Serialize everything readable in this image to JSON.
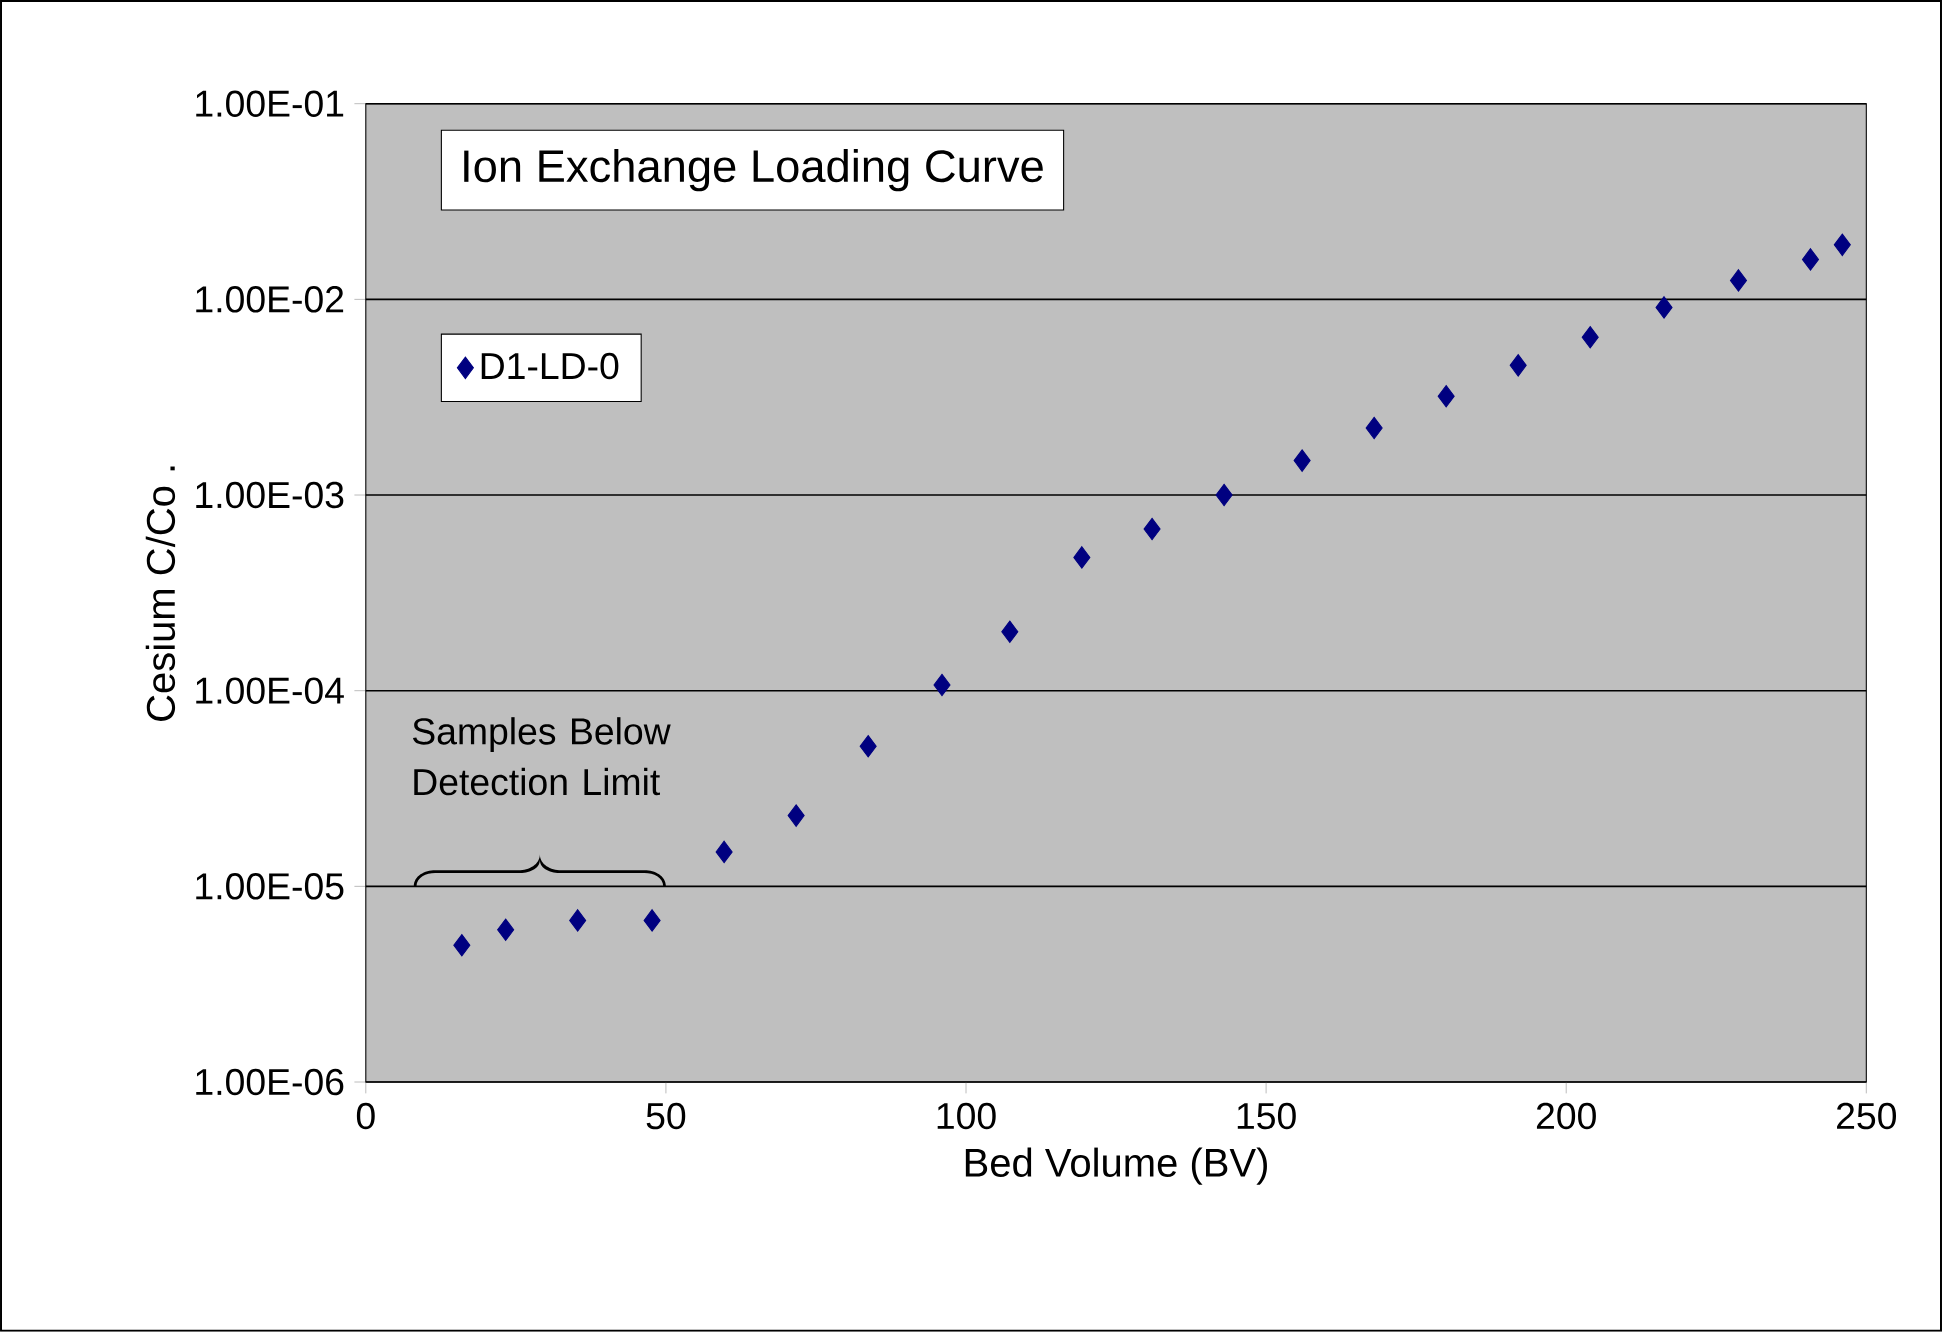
{
  "chart_data": {
    "type": "scatter",
    "title": "Ion Exchange Loading Curve",
    "xlabel": "Bed Volume (BV)",
    "ylabel": "Cesium C/Co     .",
    "x": [
      16,
      23.3,
      35.3,
      47.7,
      59.7,
      71.7,
      83.7,
      96,
      107.3,
      119.3,
      131,
      143,
      156,
      168,
      180,
      192,
      204,
      216.3,
      228.7,
      240.7,
      246
    ],
    "series": [
      {
        "name": "D1-LD-0",
        "color": "#000080",
        "values": [
          5e-06,
          6e-06,
          6.7e-06,
          6.7e-06,
          1.5e-05,
          2.3e-05,
          5.2e-05,
          0.000107,
          0.0002,
          0.00048,
          0.00067,
          0.001,
          0.0015,
          0.0022,
          0.0032,
          0.0046,
          0.0064,
          0.0091,
          0.0125,
          0.016,
          0.019
        ]
      }
    ],
    "xlim": [
      0,
      250
    ],
    "xticks": [
      0,
      50,
      100,
      150,
      200,
      250
    ],
    "ylim": [
      1e-06,
      0.1
    ],
    "yticks": [
      {
        "value": 1e-06,
        "label": "1.00E-06"
      },
      {
        "value": 1e-05,
        "label": "1.00E-05"
      },
      {
        "value": 0.0001,
        "label": "1.00E-04"
      },
      {
        "value": 0.001,
        "label": "1.00E-03"
      },
      {
        "value": 0.01,
        "label": "1.00E-02"
      },
      {
        "value": 0.1,
        "label": "1.00E-01"
      }
    ],
    "log": "y",
    "grid": "y",
    "legend": "top left",
    "marker": "diamond",
    "annotations": [
      "Samples Below Detection Limit"
    ]
  }
}
